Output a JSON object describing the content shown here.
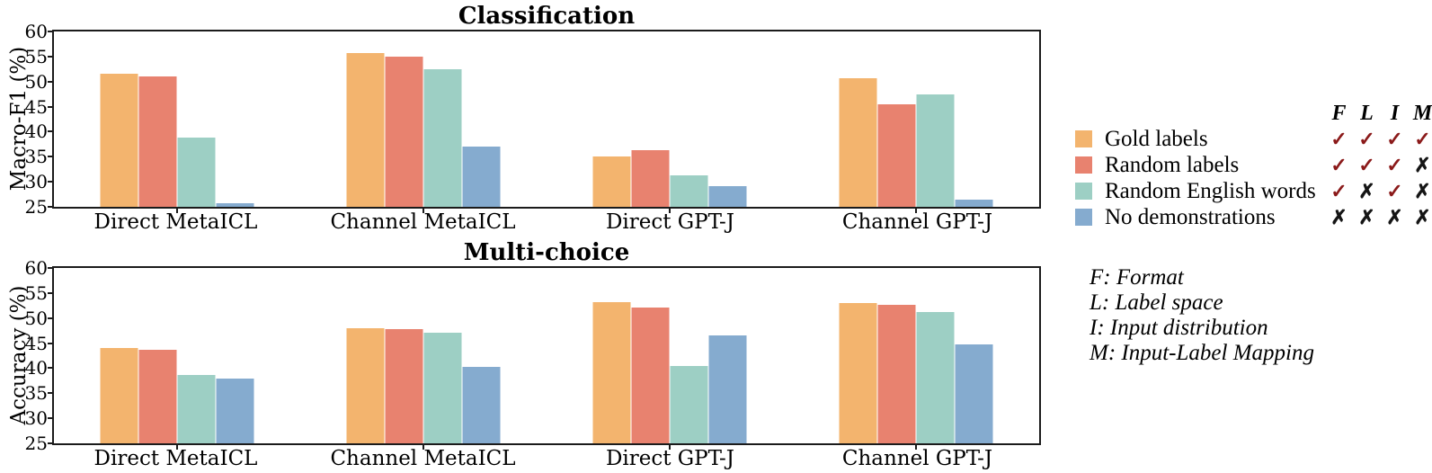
{
  "colors": {
    "gold": "#F3B46E",
    "random_labels": "#E8826F",
    "random_english": "#9DCFC4",
    "no_demos": "#85ABCF",
    "check": "#8B1A1A",
    "cross": "#151515",
    "axis": "#1b1b1b"
  },
  "glyphs": {
    "check": "✓",
    "cross": "✗"
  },
  "legend": {
    "header": [
      "F",
      "L",
      "I",
      "M"
    ],
    "items": [
      {
        "label": "Gold labels",
        "color_key": "gold",
        "marks": [
          "check",
          "check",
          "check",
          "check"
        ]
      },
      {
        "label": "Random labels",
        "color_key": "random_labels",
        "marks": [
          "check",
          "check",
          "check",
          "cross"
        ]
      },
      {
        "label": "Random English words",
        "color_key": "random_english",
        "marks": [
          "check",
          "cross",
          "check",
          "cross"
        ]
      },
      {
        "label": "No demonstrations",
        "color_key": "no_demos",
        "marks": [
          "cross",
          "cross",
          "cross",
          "cross"
        ]
      }
    ]
  },
  "footnotes": [
    "F: Format",
    "L: Label space",
    "I: Input distribution",
    "M: Input-Label Mapping"
  ],
  "chart_data": [
    {
      "type": "bar",
      "title": "Classification",
      "ylabel": "Macro-F1 (%)",
      "ylim": [
        25,
        60
      ],
      "yticks": [
        60,
        55,
        50,
        45,
        40,
        35,
        30,
        25
      ],
      "grid": false,
      "categories": [
        "Direct MetaICL",
        "Channel MetaICL",
        "Direct GPT-J",
        "Channel GPT-J"
      ],
      "series": [
        {
          "name": "Gold labels",
          "color_key": "gold",
          "values": [
            51.5,
            55.7,
            35.1,
            50.6
          ]
        },
        {
          "name": "Random labels",
          "color_key": "random_labels",
          "values": [
            51.0,
            54.9,
            36.4,
            45.5
          ]
        },
        {
          "name": "Random English words",
          "color_key": "random_english",
          "values": [
            38.8,
            52.4,
            31.3,
            47.4
          ]
        },
        {
          "name": "No demonstrations",
          "color_key": "no_demos",
          "values": [
            25.8,
            37.0,
            29.2,
            26.4
          ]
        }
      ]
    },
    {
      "type": "bar",
      "title": "Multi-choice",
      "ylabel": "Accuracy (%)",
      "ylim": [
        25,
        60
      ],
      "yticks": [
        60,
        55,
        50,
        45,
        40,
        35,
        30,
        25
      ],
      "grid": false,
      "categories": [
        "Direct MetaICL",
        "Channel MetaICL",
        "Direct GPT-J",
        "Channel GPT-J"
      ],
      "series": [
        {
          "name": "Gold labels",
          "color_key": "gold",
          "values": [
            44.0,
            48.0,
            53.2,
            53.0
          ]
        },
        {
          "name": "Random labels",
          "color_key": "random_labels",
          "values": [
            43.7,
            47.8,
            52.2,
            52.7
          ]
        },
        {
          "name": "Random English words",
          "color_key": "random_english",
          "values": [
            38.7,
            47.0,
            40.5,
            51.2
          ]
        },
        {
          "name": "No demonstrations",
          "color_key": "no_demos",
          "values": [
            38.0,
            40.3,
            46.5,
            44.8
          ]
        }
      ]
    }
  ]
}
